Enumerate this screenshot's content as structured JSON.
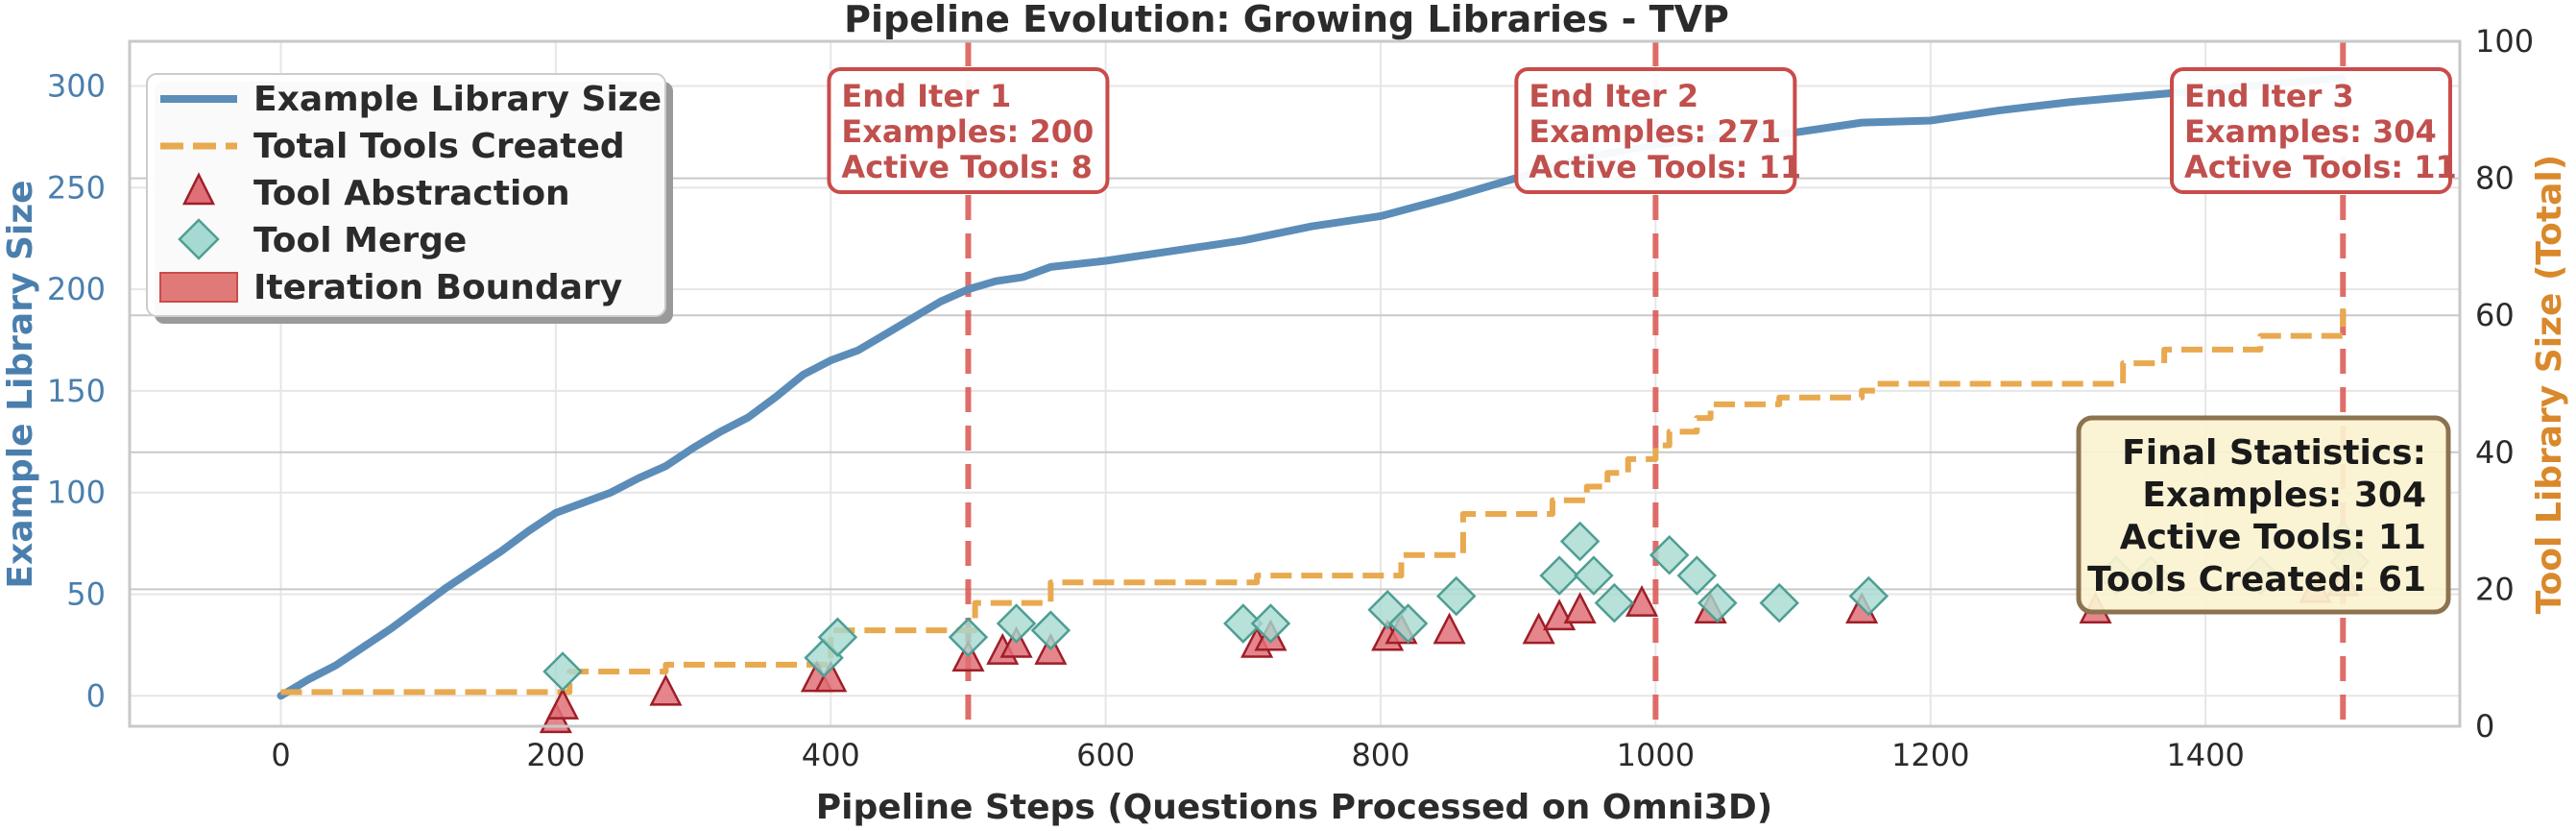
{
  "chart_data": {
    "type": "line",
    "title": "Pipeline Evolution: Growing Libraries - TVP",
    "xlabel": "Pipeline Steps (Questions Processed on Omni3D)",
    "ylabel_left": "Example Library Size",
    "ylabel_right": "Tool Library Size (Total)",
    "xlim": [
      -110,
      1585
    ],
    "ylim_left": [
      -15,
      322
    ],
    "ylim_right": [
      0,
      100
    ],
    "x_ticks": [
      0,
      200,
      400,
      600,
      800,
      1000,
      1200,
      1400
    ],
    "y_left_ticks": [
      0,
      50,
      100,
      150,
      200,
      250,
      300
    ],
    "y_right_ticks": [
      0,
      20,
      40,
      60,
      80,
      100
    ],
    "grid": true,
    "legend_position": "top-left",
    "colors": {
      "examples": "#5b8db8",
      "tools": "#e8a94f",
      "abstraction": "#d0454c",
      "merge": "#7cc5bb",
      "boundary": "#d9534f",
      "left_axis": "#4a7fad",
      "right_axis": "#d9892b"
    },
    "legend": [
      {
        "label": "Example Library Size",
        "kind": "solid-line"
      },
      {
        "label": "Total Tools Created",
        "kind": "dashed-line"
      },
      {
        "label": "Tool Abstraction",
        "kind": "triangle"
      },
      {
        "label": "Tool Merge",
        "kind": "diamond"
      },
      {
        "label": "Iteration Boundary",
        "kind": "patch"
      }
    ],
    "series": [
      {
        "name": "Example Library Size",
        "axis": "left",
        "x": [
          0,
          20,
          40,
          60,
          80,
          100,
          120,
          140,
          160,
          180,
          200,
          220,
          240,
          260,
          280,
          300,
          320,
          340,
          360,
          380,
          400,
          420,
          440,
          460,
          480,
          500,
          520,
          540,
          560,
          600,
          650,
          700,
          750,
          800,
          850,
          900,
          950,
          1000,
          1050,
          1100,
          1150,
          1200,
          1250,
          1300,
          1400,
          1500
        ],
        "y": [
          0,
          8,
          15,
          24,
          33,
          43,
          53,
          62,
          71,
          81,
          90,
          95,
          100,
          107,
          113,
          122,
          130,
          137,
          147,
          158,
          165,
          170,
          178,
          186,
          194,
          200,
          204,
          206,
          211,
          214,
          219,
          224,
          231,
          236,
          245,
          255,
          265,
          271,
          275,
          277,
          282,
          283,
          288,
          292,
          298,
          304
        ]
      },
      {
        "name": "Total Tools Created",
        "axis": "right",
        "x": [
          0,
          200,
          210,
          280,
          390,
          400,
          500,
          505,
          550,
          560,
          700,
          710,
          800,
          815,
          850,
          860,
          920,
          925,
          945,
          950,
          960,
          965,
          975,
          980,
          990,
          1000,
          1010,
          1030,
          1040,
          1090,
          1100,
          1150,
          1160,
          1330,
          1340,
          1360,
          1370,
          1430,
          1440,
          1490,
          1500
        ],
        "y": [
          5,
          5,
          8,
          9,
          9,
          14,
          14,
          18,
          18,
          21,
          21,
          22,
          22,
          25,
          25,
          31,
          31,
          33,
          33,
          35,
          35,
          37,
          37,
          39,
          39,
          41,
          43,
          45,
          47,
          48,
          48,
          49,
          50,
          50,
          53,
          53,
          55,
          55,
          57,
          57,
          61
        ]
      }
    ],
    "tool_abstraction_events": [
      {
        "x": 200,
        "y": 1
      },
      {
        "x": 205,
        "y": 3
      },
      {
        "x": 280,
        "y": 5
      },
      {
        "x": 390,
        "y": 7
      },
      {
        "x": 400,
        "y": 7
      },
      {
        "x": 500,
        "y": 10
      },
      {
        "x": 525,
        "y": 11
      },
      {
        "x": 535,
        "y": 12
      },
      {
        "x": 560,
        "y": 11
      },
      {
        "x": 710,
        "y": 12
      },
      {
        "x": 720,
        "y": 13
      },
      {
        "x": 805,
        "y": 13
      },
      {
        "x": 815,
        "y": 14
      },
      {
        "x": 850,
        "y": 14
      },
      {
        "x": 915,
        "y": 14
      },
      {
        "x": 930,
        "y": 16
      },
      {
        "x": 945,
        "y": 17
      },
      {
        "x": 990,
        "y": 18
      },
      {
        "x": 1040,
        "y": 17
      },
      {
        "x": 1150,
        "y": 17
      },
      {
        "x": 1320,
        "y": 17
      },
      {
        "x": 1480,
        "y": 20
      },
      {
        "x": 1500,
        "y": 21
      }
    ],
    "tool_merge_events": [
      {
        "x": 205,
        "y": 8
      },
      {
        "x": 395,
        "y": 10
      },
      {
        "x": 405,
        "y": 13
      },
      {
        "x": 500,
        "y": 13
      },
      {
        "x": 535,
        "y": 15
      },
      {
        "x": 560,
        "y": 14
      },
      {
        "x": 700,
        "y": 15
      },
      {
        "x": 720,
        "y": 15
      },
      {
        "x": 805,
        "y": 17
      },
      {
        "x": 820,
        "y": 15
      },
      {
        "x": 855,
        "y": 19
      },
      {
        "x": 930,
        "y": 22
      },
      {
        "x": 945,
        "y": 27
      },
      {
        "x": 955,
        "y": 22
      },
      {
        "x": 970,
        "y": 18
      },
      {
        "x": 1010,
        "y": 25
      },
      {
        "x": 1030,
        "y": 22
      },
      {
        "x": 1045,
        "y": 18
      },
      {
        "x": 1090,
        "y": 18
      },
      {
        "x": 1155,
        "y": 19
      },
      {
        "x": 1335,
        "y": 22
      },
      {
        "x": 1360,
        "y": 22
      },
      {
        "x": 1440,
        "y": 22
      },
      {
        "x": 1500,
        "y": 27
      },
      {
        "x": 1505,
        "y": 24
      }
    ],
    "iteration_boundaries": [
      {
        "x": 500,
        "lines": [
          "End Iter 1",
          "Examples: 200",
          "Active Tools: 8"
        ]
      },
      {
        "x": 1000,
        "lines": [
          "End Iter 2",
          "Examples: 271",
          "Active Tools: 11"
        ]
      },
      {
        "x": 1500,
        "lines": [
          "End Iter 3",
          "Examples: 304",
          "Active Tools: 11"
        ]
      }
    ],
    "final_statistics": [
      "Final Statistics:",
      "Examples: 304",
      "Active Tools: 11",
      "Tools Created: 61"
    ]
  }
}
